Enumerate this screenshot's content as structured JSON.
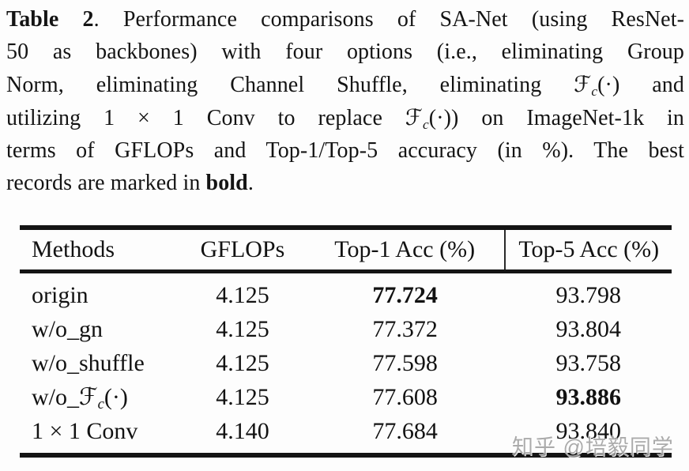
{
  "caption": {
    "label": "Table 2",
    "line1_rest": ". Performance comparisons of SA-Net (using ResNet-",
    "line2": "50 as backbones) with four options (i.e., eliminating Group",
    "line3_pre": "Norm, eliminating Channel Shuffle, eliminating ",
    "fc_symbol": "ℱ",
    "fc_sub": "c",
    "fc_args": "(·)",
    "line3_post": " and",
    "line4_pre": "utilizing 1 × 1 Conv to replace ",
    "fc2_symbol": "ℱ",
    "fc2_sub": "c",
    "fc2_args": "(·))",
    "line4_post": " on ImageNet-1k in",
    "line5": "terms of GFLOPs and Top-1/Top-5 accuracy (in %). The best",
    "line6_pre": "records are marked in ",
    "line6_bold": "bold",
    "line6_post": "."
  },
  "table": {
    "headers": [
      "Methods",
      "GFLOPs",
      "Top-1 Acc (%)",
      "Top-5 Acc (%)"
    ],
    "rows": [
      {
        "method": "origin",
        "gflops": "4.125",
        "top1": "77.724",
        "top5": "93.798",
        "top1_bold": true,
        "top5_bold": false
      },
      {
        "method": "w/o_gn",
        "gflops": "4.125",
        "top1": "77.372",
        "top5": "93.804",
        "top1_bold": false,
        "top5_bold": false
      },
      {
        "method": "w/o_shuffle",
        "gflops": "4.125",
        "top1": "77.598",
        "top5": "93.758",
        "top1_bold": false,
        "top5_bold": false
      },
      {
        "method_pre": "w/o_",
        "method_script": "ℱ",
        "method_sub": "c",
        "method_post": "(·)",
        "gflops": "4.125",
        "top1": "77.608",
        "top5": "93.886",
        "top1_bold": false,
        "top5_bold": true
      },
      {
        "method": "1 × 1 Conv",
        "gflops": "4.140",
        "top1": "77.684",
        "top5": "93.840",
        "top1_bold": false,
        "top5_bold": false
      }
    ]
  },
  "watermark": {
    "text": "知乎 @培毅同学"
  },
  "colors": {
    "text": "#141414",
    "rule": "#141414",
    "background": "#fdfdfd",
    "watermark": "#949494"
  }
}
